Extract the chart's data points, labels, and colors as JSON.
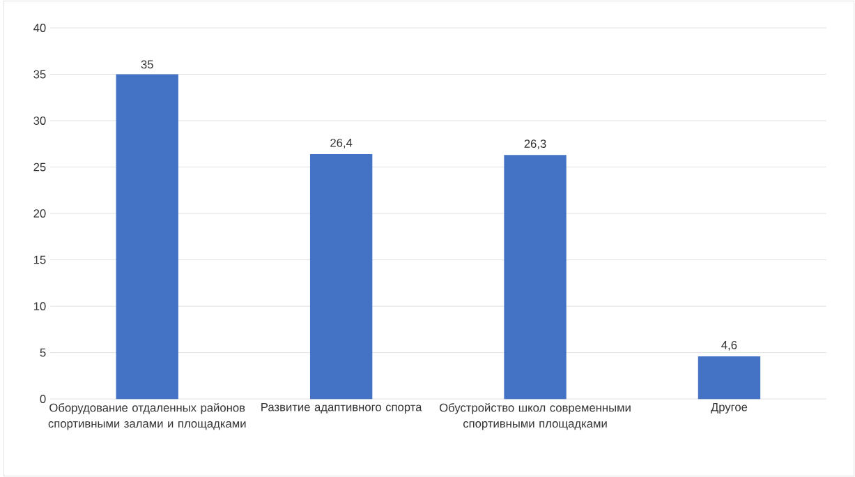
{
  "chart_data": {
    "type": "bar",
    "categories": [
      "Оборудование отдаленных районов спортивными залами и площадками",
      "Развитие адаптивного спорта",
      "Обустройство школ современными спортивными площадками",
      "Другое"
    ],
    "values": [
      35,
      26.4,
      26.3,
      4.6
    ],
    "value_labels": [
      "35",
      "26,4",
      "26,3",
      "4,6"
    ],
    "color": "#4472c4",
    "ylim": [
      0,
      40
    ],
    "yticks": [
      0,
      5,
      10,
      15,
      20,
      25,
      30,
      35,
      40
    ],
    "grid": "y"
  }
}
